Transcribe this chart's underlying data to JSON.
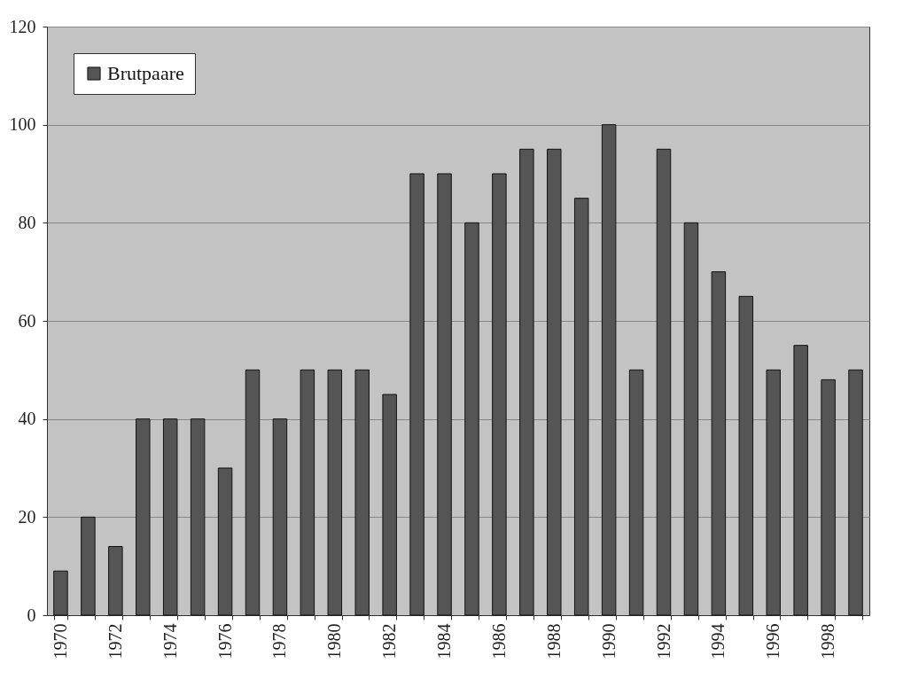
{
  "chart_data": {
    "type": "bar",
    "categories": [
      "1970",
      null,
      "1972",
      null,
      "1974",
      null,
      "1976",
      null,
      "1978",
      null,
      "1980",
      null,
      "1982",
      null,
      "1984",
      null,
      "1986",
      null,
      "1988",
      null,
      "1990",
      null,
      "1992",
      null,
      "1994",
      null,
      "1996",
      null,
      "1998",
      null
    ],
    "series": [
      {
        "name": "Brutpaare",
        "color": "#555555",
        "values": [
          9,
          20,
          14,
          40,
          40,
          40,
          30,
          50,
          40,
          50,
          50,
          50,
          45,
          90,
          90,
          80,
          90,
          95,
          95,
          85,
          100,
          50,
          95,
          80,
          70,
          65,
          50,
          55,
          48,
          50
        ]
      }
    ],
    "ylim": [
      0,
      120
    ],
    "yticks": [
      0,
      20,
      40,
      60,
      80,
      100,
      120
    ],
    "grid": "y",
    "legend": "top left"
  }
}
